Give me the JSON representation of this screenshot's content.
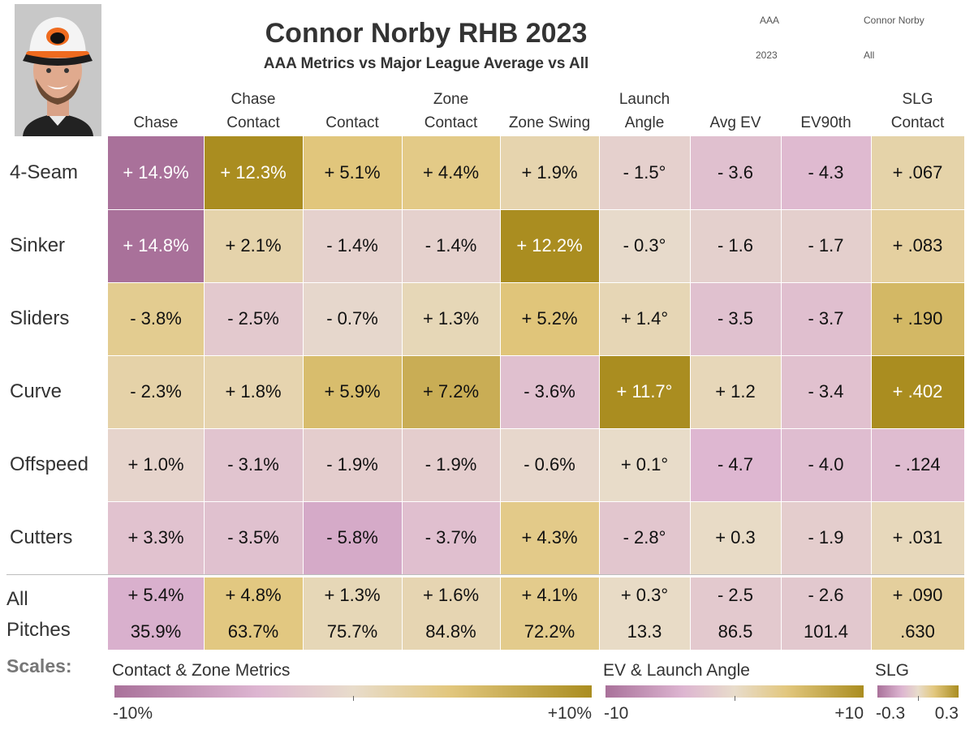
{
  "header": {
    "title": "Connor Norby RHB 2023",
    "subtitle": "AAA Metrics vs Major League Average vs All",
    "filters": {
      "level": "AAA",
      "player": "Connor Norby",
      "year": "2023",
      "pitch_filter": "All"
    }
  },
  "columns": [
    {
      "line1": "",
      "line2": "Chase"
    },
    {
      "line1": "Chase",
      "line2": "Contact"
    },
    {
      "line1": "",
      "line2": "Contact"
    },
    {
      "line1": "Zone",
      "line2": "Contact"
    },
    {
      "line1": "",
      "line2": "Zone Swing"
    },
    {
      "line1": "Launch",
      "line2": "Angle"
    },
    {
      "line1": "",
      "line2": "Avg EV"
    },
    {
      "line1": "",
      "line2": "EV90th"
    },
    {
      "line1": "SLG",
      "line2": "Contact"
    }
  ],
  "chart_data": {
    "type": "heatmap",
    "title": "Connor Norby RHB 2023",
    "subtitle": "AAA Metrics vs Major League Average vs All",
    "columns": [
      "Chase",
      "Chase Contact",
      "Contact",
      "Zone Contact",
      "Zone Swing",
      "Launch Angle",
      "Avg EV",
      "EV90th",
      "SLG Contact"
    ],
    "rows": [
      {
        "label": "4-Seam",
        "labels": [
          "+ 14.9%",
          "+ 12.3%",
          "+ 5.1%",
          "+ 4.4%",
          "+ 1.9%",
          "- 1.5°",
          "- 3.6",
          "- 4.3",
          "+ .067"
        ],
        "values": [
          14.9,
          12.3,
          5.1,
          4.4,
          1.9,
          -1.5,
          -3.6,
          -4.3,
          0.067
        ],
        "colors": [
          -14.9,
          12.3,
          5.1,
          4.4,
          1.9,
          -1.5,
          -3.6,
          -4.3,
          0.067
        ]
      },
      {
        "label": "Sinker",
        "labels": [
          "+ 14.8%",
          "+ 2.1%",
          "- 1.4%",
          "- 1.4%",
          "+ 12.2%",
          "- 0.3°",
          "- 1.6",
          "- 1.7",
          "+ .083"
        ],
        "values": [
          14.8,
          2.1,
          -1.4,
          -1.4,
          12.2,
          -0.3,
          -1.6,
          -1.7,
          0.083
        ],
        "colors": [
          -14.8,
          2.1,
          -1.4,
          -1.4,
          12.2,
          -0.3,
          -1.6,
          -1.7,
          0.083
        ]
      },
      {
        "label": "Sliders",
        "labels": [
          "- 3.8%",
          "- 2.5%",
          "- 0.7%",
          "+ 1.3%",
          "+ 5.2%",
          "+ 1.4°",
          "- 3.5",
          "- 3.7",
          "+ .190"
        ],
        "values": [
          -3.8,
          -2.5,
          -0.7,
          1.3,
          5.2,
          1.4,
          -3.5,
          -3.7,
          0.19
        ],
        "colors": [
          3.8,
          -2.5,
          -0.7,
          1.3,
          5.2,
          1.4,
          -3.5,
          -3.7,
          0.19
        ]
      },
      {
        "label": "Curve",
        "labels": [
          "- 2.3%",
          "+ 1.8%",
          "+ 5.9%",
          "+ 7.2%",
          "- 3.6%",
          "+ 11.7°",
          "+ 1.2",
          "- 3.4",
          "+ .402"
        ],
        "values": [
          -2.3,
          1.8,
          5.9,
          7.2,
          -3.6,
          11.7,
          1.2,
          -3.4,
          0.402
        ],
        "colors": [
          2.3,
          1.8,
          5.9,
          7.2,
          -3.6,
          11.7,
          1.2,
          -3.4,
          0.402
        ]
      },
      {
        "label": "Offspeed",
        "labels": [
          "+ 1.0%",
          "- 3.1%",
          "- 1.9%",
          "- 1.9%",
          "- 0.6%",
          "+ 0.1°",
          "- 4.7",
          "- 4.0",
          "- .124"
        ],
        "values": [
          1.0,
          -3.1,
          -1.9,
          -1.9,
          -0.6,
          0.1,
          -4.7,
          -4.0,
          -0.124
        ],
        "colors": [
          -1.0,
          -3.1,
          -1.9,
          -1.9,
          -0.6,
          0.1,
          -4.7,
          -4.0,
          -0.124
        ]
      },
      {
        "label": "Cutters",
        "labels": [
          "+ 3.3%",
          "- 3.5%",
          "- 5.8%",
          "- 3.7%",
          "+ 4.3%",
          "- 2.8°",
          "+ 0.3",
          "- 1.9",
          "+ .031"
        ],
        "values": [
          3.3,
          -3.5,
          -5.8,
          -3.7,
          4.3,
          -2.8,
          0.3,
          -1.9,
          0.031
        ],
        "colors": [
          -3.3,
          -3.5,
          -5.8,
          -3.7,
          4.3,
          -2.8,
          0.3,
          -1.9,
          0.031
        ]
      }
    ],
    "all_pitches": {
      "label_line1": "All",
      "label_line2": "Pitches",
      "diff_labels": [
        "+ 5.4%",
        "+ 4.8%",
        "+ 1.3%",
        "+ 1.6%",
        "+ 4.1%",
        "+ 0.3°",
        "- 2.5",
        "- 2.6",
        "+ .090"
      ],
      "diff_values": [
        5.4,
        4.8,
        1.3,
        1.6,
        4.1,
        0.3,
        -2.5,
        -2.6,
        0.09
      ],
      "colors": [
        -5.4,
        4.8,
        1.3,
        1.6,
        4.1,
        0.3,
        -2.5,
        -2.6,
        0.09
      ],
      "actual_labels": [
        "35.9%",
        "63.7%",
        "75.7%",
        "84.8%",
        "72.2%",
        "13.3",
        "86.5",
        "101.4",
        ".630"
      ],
      "actual_values": [
        35.9,
        63.7,
        75.7,
        84.8,
        72.2,
        13.3,
        86.5,
        101.4,
        0.63
      ]
    },
    "scales": [
      {
        "title": "Contact & Zone Metrics",
        "min_label": "-10%",
        "max_label": "+10%",
        "range": [
          -10,
          10
        ]
      },
      {
        "title": "EV & Launch Angle",
        "min_label": "-10",
        "max_label": "+10",
        "range": [
          -10,
          10
        ]
      },
      {
        "title": "SLG",
        "min_label": "-0.3",
        "max_label": "0.3",
        "range": [
          -0.3,
          0.3
        ]
      }
    ],
    "column_scale": [
      0,
      0,
      0,
      0,
      0,
      1,
      1,
      1,
      2
    ],
    "palette": {
      "low": "#a9719a",
      "mid_low": "#ddb5d1",
      "neutral": "#e8dccb",
      "mid_high": "#e2c77e",
      "high": "#aa8d20"
    }
  },
  "scales_label": "Scales:"
}
